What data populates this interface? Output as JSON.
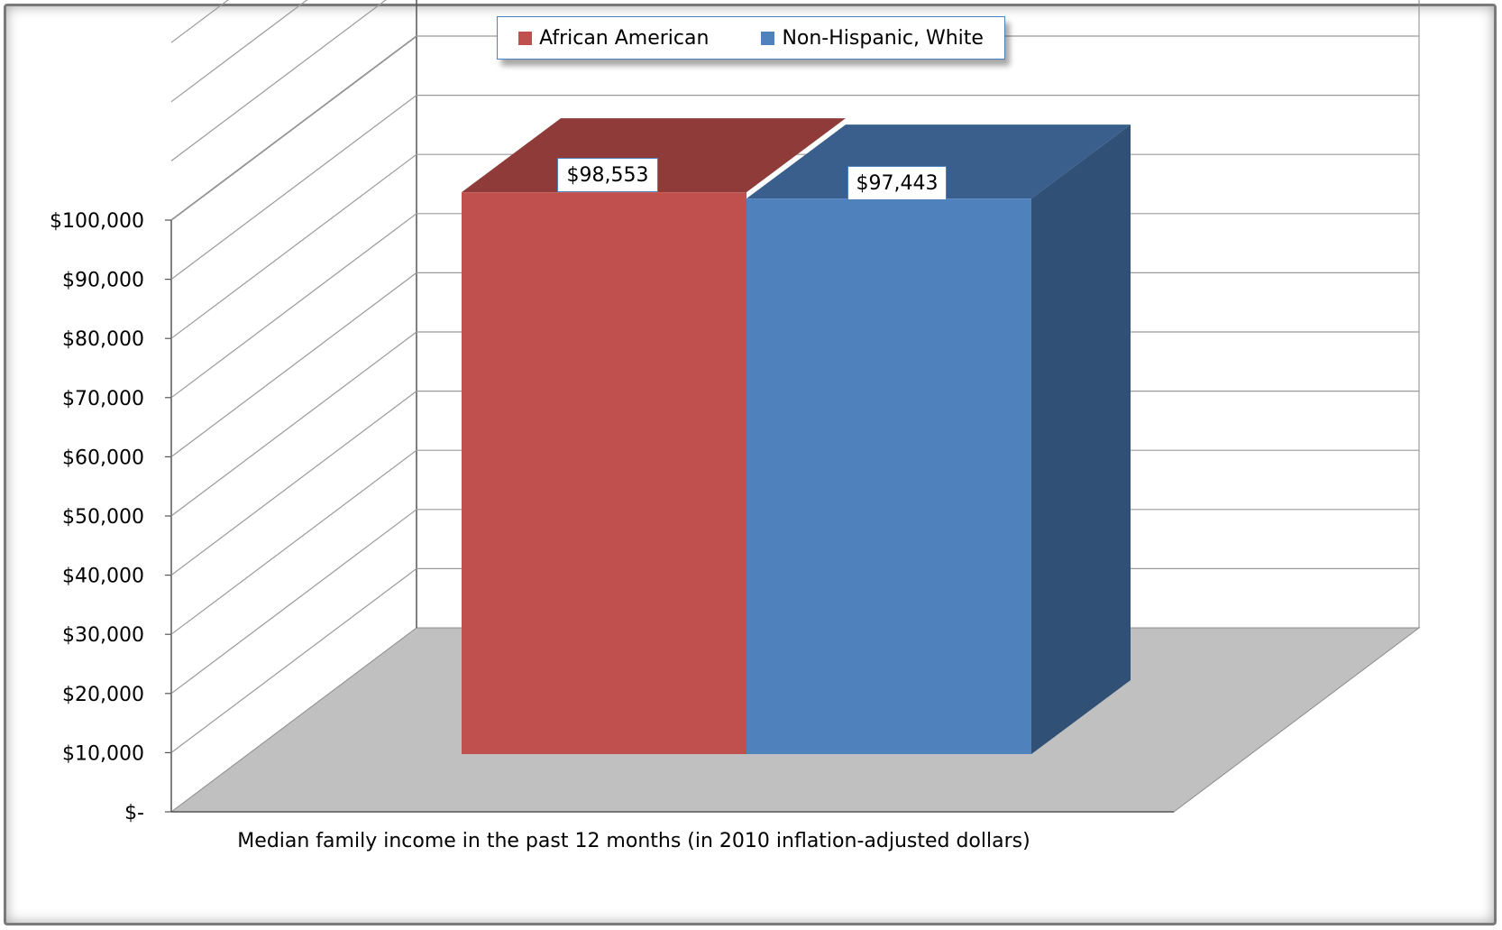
{
  "chart_data": {
    "type": "bar",
    "style": "3d-clustered",
    "categories": [
      "Median family income in the past 12 months (in 2010 inflation-adjusted dollars)"
    ],
    "series": [
      {
        "name": "African American",
        "values": [
          98553
        ],
        "color": "#c0504d",
        "label": "$98,553"
      },
      {
        "name": "Non-Hispanic, White",
        "values": [
          97443
        ],
        "color": "#4f81bd",
        "label": "$97,443"
      }
    ],
    "xlabel": "Median family income in the past 12 months (in 2010 inflation-adjusted dollars)",
    "ylabel": "",
    "ylim": [
      0,
      100000
    ],
    "yticks": [
      "$-",
      "$10,000",
      "$20,000",
      "$30,000",
      "$40,000",
      "$50,000",
      "$60,000",
      "$70,000",
      "$80,000",
      "$90,000",
      "$100,000"
    ],
    "grid": true,
    "legend": "top-center",
    "floor_color": "#c0c0c0"
  }
}
